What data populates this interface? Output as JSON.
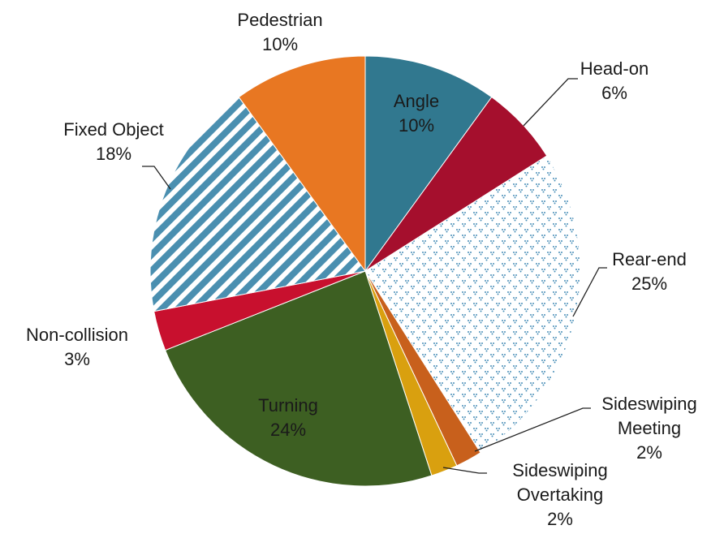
{
  "chart_data": {
    "type": "pie",
    "categories": [
      "Angle",
      "Head-on",
      "Rear-end",
      "Sideswiping Meeting",
      "Sideswiping Overtaking",
      "Turning",
      "Non-collision",
      "Fixed Object",
      "Pedestrian"
    ],
    "values": [
      10,
      6,
      25,
      2,
      2,
      24,
      3,
      18,
      10
    ],
    "value_labels": [
      "10%",
      "6%",
      "25%",
      "2%",
      "2%",
      "24%",
      "3%",
      "18%",
      "10%"
    ],
    "colors": [
      "#31788f",
      "#a50f2d",
      "#4a8fb8",
      "#c8601c",
      "#d9a00f",
      "#3d5f22",
      "#c8102e",
      "#4a8fb0",
      "#e87722"
    ],
    "patterns": [
      "solid",
      "solid",
      "dots",
      "solid",
      "solid",
      "solid",
      "solid",
      "stripes",
      "solid"
    ]
  }
}
